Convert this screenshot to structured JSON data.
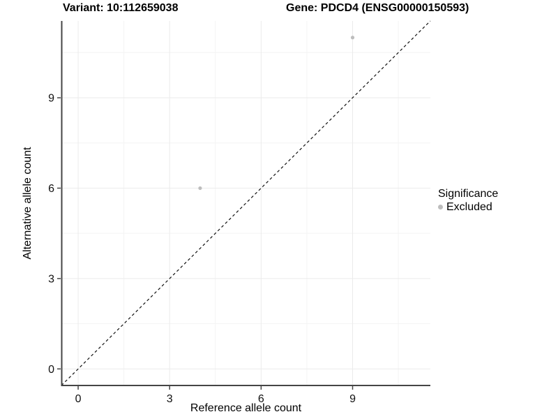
{
  "titles": {
    "variant": "Variant: 10:112659038",
    "gene": "Gene: PDCD4 (ENSG00000150593)"
  },
  "axes": {
    "x_label": "Reference allele count",
    "y_label": "Alternative allele count"
  },
  "legend": {
    "title": "Significance",
    "items": [
      {
        "label": "Excluded",
        "color": "#bdbdbd"
      }
    ]
  },
  "colors": {
    "background": "#ffffff",
    "grid_major": "#ebebeb",
    "grid_minor": "#f4f4f4",
    "axis": "#454545",
    "text": "#111111",
    "point": "#bdbdbd",
    "ref_line": "#111111"
  },
  "chart_data": {
    "type": "scatter",
    "title": "Variant: 10:112659038   Gene: PDCD4 (ENSG00000150593)",
    "xlabel": "Reference allele count",
    "ylabel": "Alternative allele count",
    "xlim": [
      -0.55,
      11.55
    ],
    "ylim": [
      -0.55,
      11.55
    ],
    "x_ticks": [
      0,
      3,
      6,
      9
    ],
    "y_ticks": [
      0,
      3,
      6,
      9
    ],
    "x_minor": [
      1.5,
      4.5,
      7.5,
      10.5
    ],
    "y_minor": [
      1.5,
      4.5,
      7.5,
      10.5
    ],
    "grid": true,
    "legend_position": "right",
    "series": [
      {
        "name": "Excluded",
        "color": "#bdbdbd",
        "points": [
          {
            "x": 4,
            "y": 6
          },
          {
            "x": 9,
            "y": 11
          }
        ]
      }
    ],
    "reference_line": {
      "type": "identity",
      "style": "dashed",
      "comment": "y = x"
    }
  }
}
